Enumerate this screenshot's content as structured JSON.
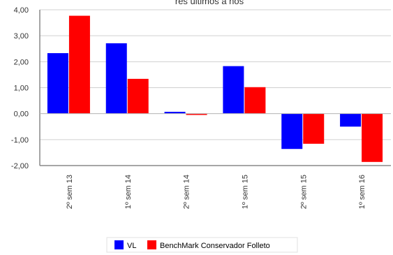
{
  "chart_data": {
    "type": "bar",
    "title": "rés últimos a ños",
    "xlabel": "",
    "ylabel": "",
    "categories": [
      "2º sem 13",
      "1º sem 14",
      "2º sem 14",
      "1º sem 15",
      "2º sem 15",
      "1º sem 16"
    ],
    "series": [
      {
        "name": "VL",
        "color": "#0000ff",
        "values": [
          2.33,
          2.71,
          0.07,
          1.83,
          -1.36,
          -0.5
        ]
      },
      {
        "name": "BenchMark Conservador Folleto",
        "color": "#ff0000",
        "values": [
          3.77,
          1.34,
          -0.05,
          1.02,
          -1.16,
          -1.86
        ]
      }
    ],
    "ylim": [
      -2,
      4
    ],
    "yticks": [
      "4,00",
      "3,00",
      "2,00",
      "1,00",
      "0,00",
      "-1,00",
      "-2,00"
    ],
    "grid": true,
    "legend": "bottom"
  }
}
